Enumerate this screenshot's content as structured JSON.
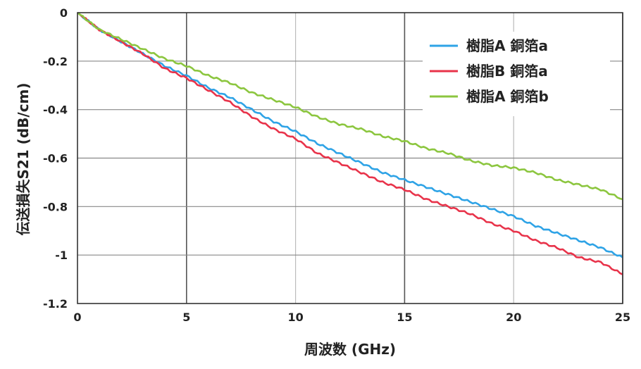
{
  "chart_data": {
    "type": "line",
    "title": "",
    "xlabel": "周波数 (GHz)",
    "ylabel": "伝送損失S21 (dB/cm)",
    "xlim": [
      0,
      25
    ],
    "ylim": [
      -1.2,
      0
    ],
    "x_ticks": [
      0,
      5,
      10,
      15,
      20,
      25
    ],
    "x_tick_labels": [
      "0",
      "5",
      "10",
      "15",
      "20",
      "25"
    ],
    "y_ticks": [
      0,
      -0.2,
      -0.4,
      -0.6,
      -0.8,
      -1,
      -1.2
    ],
    "y_tick_labels": [
      "0",
      "-0.2",
      "-0.4",
      "-0.6",
      "-0.8",
      "-1",
      "-1.2"
    ],
    "grid": true,
    "legend_position": "top-right",
    "series": [
      {
        "name": "樹脂A 銅箔a",
        "color": "#2ea3e6",
        "x": [
          0,
          1,
          2,
          3,
          4,
          5,
          6,
          7,
          8,
          9,
          10,
          11,
          12,
          13,
          14,
          15,
          16,
          17,
          18,
          19,
          20,
          21,
          22,
          23,
          24,
          25
        ],
        "y": [
          0,
          -0.07,
          -0.12,
          -0.17,
          -0.22,
          -0.26,
          -0.31,
          -0.35,
          -0.4,
          -0.45,
          -0.49,
          -0.54,
          -0.58,
          -0.62,
          -0.66,
          -0.69,
          -0.72,
          -0.75,
          -0.78,
          -0.81,
          -0.84,
          -0.88,
          -0.91,
          -0.94,
          -0.97,
          -1.01
        ]
      },
      {
        "name": "樹脂B 銅箔a",
        "color": "#e8334a",
        "x": [
          0,
          1,
          2,
          3,
          4,
          5,
          6,
          7,
          8,
          9,
          10,
          11,
          12,
          13,
          14,
          15,
          16,
          17,
          18,
          19,
          20,
          21,
          22,
          23,
          24,
          25
        ],
        "y": [
          0,
          -0.07,
          -0.12,
          -0.17,
          -0.23,
          -0.27,
          -0.32,
          -0.37,
          -0.43,
          -0.48,
          -0.52,
          -0.58,
          -0.62,
          -0.66,
          -0.7,
          -0.73,
          -0.77,
          -0.8,
          -0.83,
          -0.87,
          -0.9,
          -0.94,
          -0.97,
          -1.01,
          -1.03,
          -1.08
        ]
      },
      {
        "name": "樹脂A 銅箔b",
        "color": "#8cc63f",
        "x": [
          0,
          1,
          2,
          3,
          4,
          5,
          6,
          7,
          8,
          9,
          10,
          11,
          12,
          13,
          14,
          15,
          16,
          17,
          18,
          19,
          20,
          21,
          22,
          23,
          24,
          25
        ],
        "y": [
          0,
          -0.07,
          -0.11,
          -0.15,
          -0.19,
          -0.22,
          -0.26,
          -0.29,
          -0.33,
          -0.36,
          -0.39,
          -0.43,
          -0.46,
          -0.48,
          -0.51,
          -0.53,
          -0.56,
          -0.58,
          -0.61,
          -0.63,
          -0.64,
          -0.66,
          -0.69,
          -0.71,
          -0.73,
          -0.77
        ]
      }
    ]
  }
}
